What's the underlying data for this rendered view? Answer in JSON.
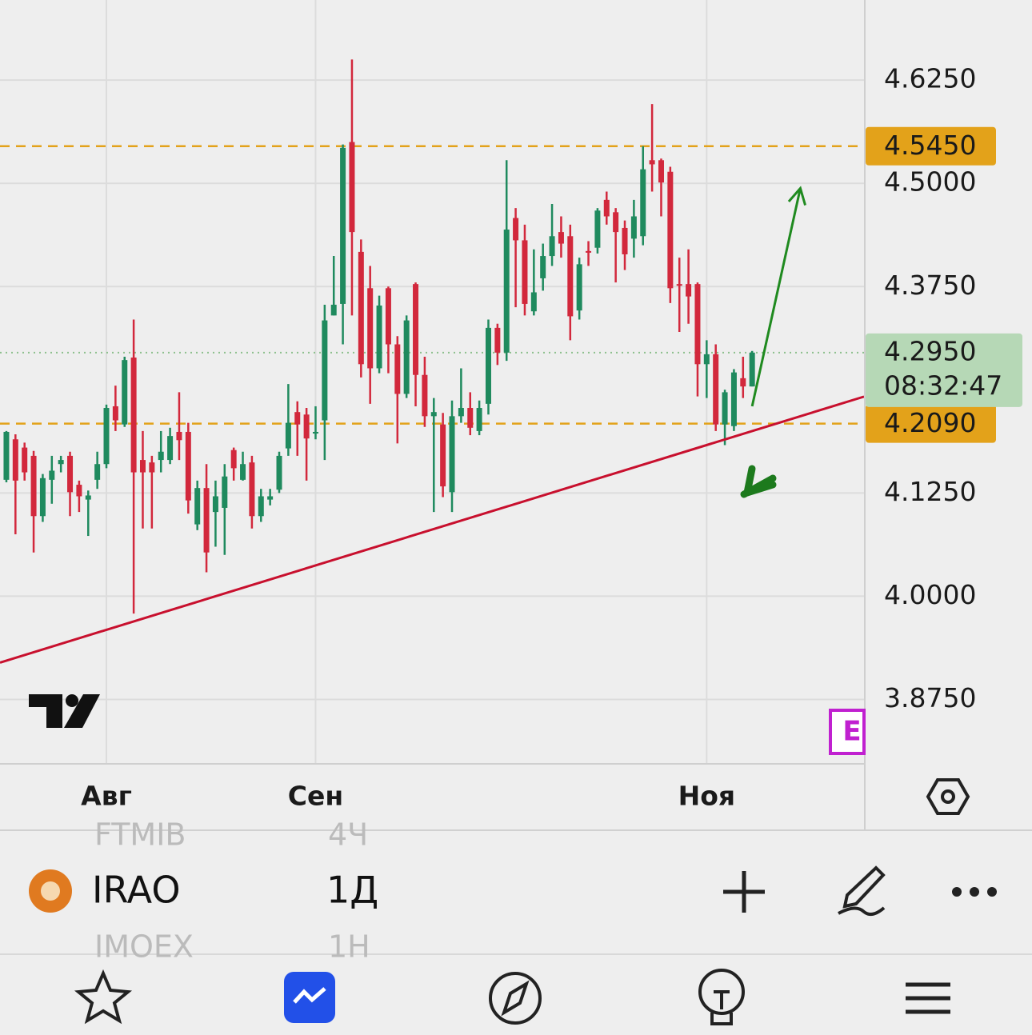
{
  "app": {
    "symbol": "IRAO",
    "interval": "1Д",
    "list_above": {
      "symbol": "FTMIB",
      "interval": "4Ч"
    },
    "list_below": {
      "symbol": "IMOEX",
      "interval": "1H"
    },
    "badge": "E"
  },
  "chart_data": {
    "type": "candlestick",
    "open": [
      4.141,
      4.19,
      4.18,
      4.17,
      4.097,
      4.141,
      4.16,
      4.17,
      4.135,
      4.117,
      4.141,
      4.16,
      4.23,
      4.208,
      4.289,
      4.165,
      4.162,
      4.165,
      4.165,
      4.199,
      4.199,
      4.087,
      4.131,
      4.102,
      4.107,
      4.177,
      4.141,
      4.162,
      4.097,
      4.117,
      4.129,
      4.179,
      4.223,
      4.22,
      4.197,
      4.213,
      4.34,
      4.354,
      4.55,
      4.417,
      4.373,
      4.276,
      4.373,
      4.305,
      4.245,
      4.378,
      4.268,
      4.218,
      4.208,
      4.126,
      4.218,
      4.228,
      4.2,
      4.233,
      4.325,
      4.295,
      4.458,
      4.431,
      4.345,
      4.385,
      4.412,
      4.441,
      4.436,
      4.346,
      4.418,
      4.422,
      4.48,
      4.465,
      4.446,
      4.433,
      4.436,
      4.528,
      4.528,
      4.514,
      4.378,
      4.378,
      4.378,
      4.281,
      4.293,
      4.208,
      4.206,
      4.264,
      4.254
    ],
    "high": [
      4.2,
      4.196,
      4.186,
      4.176,
      4.148,
      4.17,
      4.17,
      4.175,
      4.14,
      4.128,
      4.175,
      4.232,
      4.255,
      4.29,
      4.335,
      4.2,
      4.17,
      4.2,
      4.204,
      4.247,
      4.21,
      4.14,
      4.16,
      4.14,
      4.16,
      4.18,
      4.175,
      4.17,
      4.13,
      4.13,
      4.175,
      4.257,
      4.236,
      4.228,
      4.23,
      4.353,
      4.412,
      4.547,
      4.65,
      4.432,
      4.4,
      4.364,
      4.375,
      4.315,
      4.34,
      4.38,
      4.29,
      4.24,
      4.222,
      4.237,
      4.276,
      4.247,
      4.237,
      4.335,
      4.33,
      4.528,
      4.47,
      4.45,
      4.42,
      4.427,
      4.475,
      4.46,
      4.45,
      4.41,
      4.43,
      4.47,
      4.49,
      4.47,
      4.455,
      4.48,
      4.545,
      4.596,
      4.53,
      4.52,
      4.41,
      4.42,
      4.38,
      4.31,
      4.305,
      4.25,
      4.275,
      4.29,
      4.297
    ],
    "low": [
      4.138,
      4.075,
      4.14,
      4.053,
      4.09,
      4.112,
      4.15,
      4.097,
      4.102,
      4.073,
      4.13,
      4.155,
      4.2,
      4.205,
      3.979,
      4.082,
      4.082,
      4.15,
      4.16,
      4.165,
      4.1,
      4.08,
      4.029,
      4.06,
      4.05,
      4.14,
      4.14,
      4.082,
      4.09,
      4.11,
      4.125,
      4.17,
      4.17,
      4.14,
      4.19,
      4.165,
      4.34,
      4.305,
      4.34,
      4.265,
      4.233,
      4.27,
      4.27,
      4.185,
      4.24,
      4.23,
      4.205,
      4.102,
      4.12,
      4.102,
      4.21,
      4.195,
      4.195,
      4.22,
      4.28,
      4.285,
      4.35,
      4.34,
      4.34,
      4.37,
      4.4,
      4.41,
      4.31,
      4.335,
      4.4,
      4.415,
      4.45,
      4.38,
      4.395,
      4.41,
      4.425,
      4.49,
      4.46,
      4.355,
      4.32,
      4.33,
      4.242,
      4.24,
      4.2,
      4.183,
      4.2,
      4.24,
      4.254
    ],
    "close": [
      4.199,
      4.14,
      4.15,
      4.097,
      4.143,
      4.152,
      4.165,
      4.126,
      4.121,
      4.122,
      4.16,
      4.228,
      4.213,
      4.286,
      4.15,
      4.15,
      4.15,
      4.175,
      4.194,
      4.189,
      4.116,
      4.131,
      4.053,
      4.121,
      4.145,
      4.155,
      4.16,
      4.097,
      4.121,
      4.121,
      4.17,
      4.21,
      4.208,
      4.191,
      4.199,
      4.334,
      4.353,
      4.543,
      4.441,
      4.281,
      4.276,
      4.352,
      4.305,
      4.245,
      4.334,
      4.268,
      4.218,
      4.223,
      4.133,
      4.218,
      4.228,
      4.204,
      4.228,
      4.325,
      4.295,
      4.444,
      4.431,
      4.354,
      4.368,
      4.412,
      4.436,
      4.427,
      4.339,
      4.402,
      4.416,
      4.467,
      4.46,
      4.441,
      4.414,
      4.46,
      4.517,
      4.523,
      4.501,
      4.373,
      4.376,
      4.363,
      4.281,
      4.293,
      4.208,
      4.247,
      4.271,
      4.254,
      4.295
    ],
    "up_color": "#1f8a5e",
    "down_color": "#d2283c",
    "xlim": [
      -0.7,
      94.3
    ],
    "xticks": [
      {
        "value": 11,
        "label": "Авг"
      },
      {
        "value": 34,
        "label": "Сен"
      },
      {
        "value": 77,
        "label": "Ноя"
      }
    ],
    "ylim": [
      3.797,
      4.722
    ],
    "yticks": [
      {
        "value": 3.875,
        "label": "3.8750"
      },
      {
        "value": 4.0,
        "label": "4.0000"
      },
      {
        "value": 4.125,
        "label": "4.1250"
      },
      {
        "value": 4.375,
        "label": "4.3750"
      },
      {
        "value": 4.5,
        "label": "4.5000"
      },
      {
        "value": 4.625,
        "label": "4.6250"
      }
    ],
    "grid": true,
    "levels": [
      {
        "value": 4.545,
        "label": "4.5450",
        "color": "#e3a21a"
      },
      {
        "value": 4.209,
        "label": "4.2090",
        "color": "#e3a21a"
      }
    ],
    "last_price": {
      "value": 4.295,
      "label": "4.2950",
      "countdown": "08:32:47",
      "color": "#b6d8b6"
    },
    "trendline": {
      "points": [
        [
          0,
          3.922
        ],
        [
          82,
          4.2
        ]
      ],
      "color": "#c8102e"
    },
    "arrow": {
      "points": [
        [
          82,
          4.23
        ],
        [
          87.3,
          4.494
        ]
      ],
      "color": "#1f8a1f"
    }
  }
}
